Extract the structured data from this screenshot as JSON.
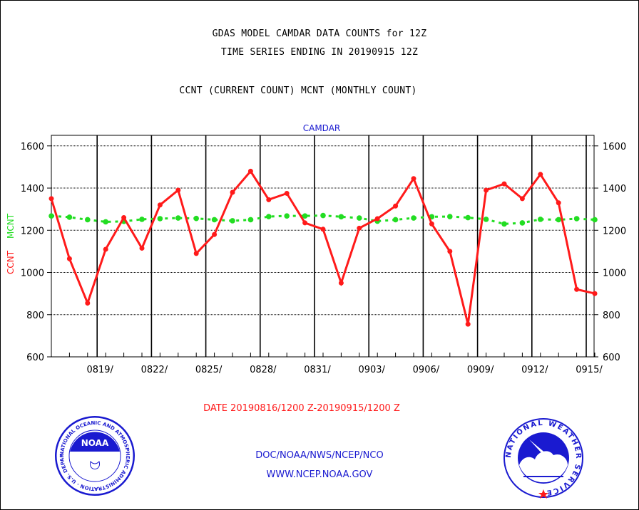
{
  "header": {
    "title1": "GDAS MODEL CAMDAR DATA COUNTS for 12Z",
    "title2": "TIME SERIES ENDING IN 20190915 12Z",
    "title3": "CCNT (CURRENT COUNT) MCNT (MONTHLY COUNT)"
  },
  "colors": {
    "ccnt": "#ff1a1a",
    "mcnt": "#22dd22",
    "panel_title": "#1a1ad0"
  },
  "chart_data": {
    "type": "line",
    "title": "CAMDAR",
    "ylabel_parts": [
      "CCNT",
      "MCNT"
    ],
    "ylim": [
      600,
      1650
    ],
    "yticks": [
      "600",
      "800",
      "1000",
      "1200",
      "1400",
      "1600"
    ],
    "xticks": [
      "0819/",
      "0822/",
      "0825/",
      "0828/",
      "0831/",
      "0903/",
      "0906/",
      "0909/",
      "0912/",
      "0915/"
    ],
    "grid": true,
    "xlabel": "DATE 20190816/1200 Z-20190915/1200 Z",
    "series": [
      {
        "name": "CCNT",
        "values": [
          1350,
          1065,
          855,
          1110,
          1260,
          1115,
          1320,
          1390,
          1090,
          1180,
          1380,
          1480,
          1345,
          1375,
          1235,
          1205,
          950,
          1210,
          1255,
          1315,
          1445,
          1230,
          1100,
          755,
          1390,
          1420,
          1350,
          1465,
          1330,
          920,
          900
        ]
      },
      {
        "name": "MCNT",
        "values": [
          1268,
          1262,
          1250,
          1240,
          1242,
          1252,
          1255,
          1258,
          1256,
          1250,
          1245,
          1250,
          1265,
          1268,
          1268,
          1270,
          1264,
          1258,
          1243,
          1250,
          1258,
          1264,
          1265,
          1260,
          1252,
          1230,
          1235,
          1252,
          1250,
          1255,
          1250
        ]
      }
    ]
  },
  "footer": {
    "line1": "DOC/NOAA/NWS/NCEP/NCO",
    "line2": "WWW.NCEP.NOAA.GOV"
  },
  "logos": {
    "noaa_label": "NOAA",
    "noaa_ring": "NATIONAL OCEANIC AND ATMOSPHERIC ADMINISTRATION · U.S. DEPARTMENT OF COMMERCE",
    "nws_ring": "NATIONAL WEATHER SERVICE"
  }
}
